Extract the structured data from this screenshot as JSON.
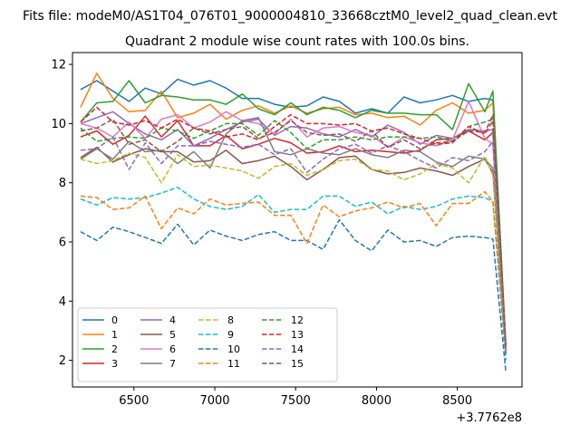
{
  "chart_data": {
    "type": "line",
    "suptitle": "Fits file: modeM0/AS1T04_076T01_9000004810_33668cztM0_level2_quad_clean.evt",
    "title": "Quadrant 2 module wise count rates with 100.0s bins.",
    "xlabel": "",
    "ylabel": "",
    "x_offset_label": "+3.7762e8",
    "xlim": [
      6120,
      8900
    ],
    "ylim": [
      1.1,
      12.4
    ],
    "x_ticks": [
      6500,
      7000,
      7500,
      8000,
      8500
    ],
    "y_ticks": [
      2,
      4,
      6,
      8,
      10,
      12
    ],
    "grid": false,
    "legend": {
      "position": "lower-left",
      "columns": 4
    },
    "x": [
      6170,
      6270,
      6370,
      6470,
      6570,
      6670,
      6770,
      6870,
      6970,
      7070,
      7170,
      7270,
      7370,
      7470,
      7570,
      7670,
      7770,
      7870,
      7970,
      8070,
      8170,
      8270,
      8370,
      8470,
      8570,
      8670,
      8720,
      8800
    ],
    "series": [
      {
        "name": "0",
        "color": "#1f77b4",
        "dash": "solid",
        "values": [
          11.15,
          11.45,
          11.1,
          10.75,
          11.2,
          11.0,
          11.5,
          11.3,
          11.45,
          11.2,
          10.85,
          10.85,
          10.65,
          10.55,
          10.6,
          10.9,
          10.75,
          10.35,
          10.5,
          10.35,
          10.9,
          10.7,
          10.8,
          10.95,
          10.75,
          10.85,
          10.8,
          2.3
        ]
      },
      {
        "name": "1",
        "color": "#ff7f0e",
        "dash": "solid",
        "values": [
          10.55,
          11.7,
          10.85,
          10.4,
          10.45,
          11.1,
          10.2,
          10.35,
          10.65,
          10.15,
          10.45,
          10.6,
          10.35,
          10.6,
          10.35,
          10.5,
          10.55,
          10.3,
          10.35,
          10.2,
          10.25,
          9.95,
          10.45,
          10.7,
          10.35,
          10.45,
          10.7,
          2.4
        ]
      },
      {
        "name": "2",
        "color": "#2ca02c",
        "dash": "solid",
        "values": [
          10.05,
          10.7,
          10.75,
          11.45,
          10.7,
          10.95,
          10.9,
          10.8,
          10.8,
          10.65,
          11.0,
          10.5,
          10.3,
          10.7,
          10.3,
          10.55,
          10.45,
          10.2,
          10.45,
          10.35,
          10.35,
          10.3,
          10.3,
          9.8,
          11.35,
          10.4,
          11.1,
          2.5
        ]
      },
      {
        "name": "3",
        "color": "#d62728",
        "dash": "solid",
        "values": [
          9.55,
          9.75,
          9.3,
          9.6,
          10.25,
          9.55,
          10.1,
          9.25,
          9.25,
          9.6,
          9.15,
          9.3,
          9.5,
          9.35,
          9.0,
          9.05,
          9.25,
          9.05,
          9.1,
          9.05,
          9.0,
          9.1,
          9.45,
          9.5,
          9.75,
          9.45,
          9.7,
          2.3
        ]
      },
      {
        "name": "4",
        "color": "#9467bd",
        "dash": "solid",
        "values": [
          10.0,
          10.2,
          10.4,
          10.0,
          9.65,
          9.45,
          9.8,
          9.25,
          9.5,
          9.8,
          10.05,
          10.15,
          9.6,
          9.9,
          9.85,
          9.65,
          9.55,
          9.8,
          9.55,
          9.95,
          9.7,
          9.3,
          9.6,
          9.5,
          9.8,
          9.75,
          9.8,
          2.4
        ]
      },
      {
        "name": "5",
        "color": "#8c564b",
        "dash": "solid",
        "values": [
          8.85,
          9.2,
          8.7,
          8.95,
          9.15,
          9.05,
          9.05,
          8.7,
          8.75,
          9.1,
          8.65,
          8.75,
          8.9,
          8.55,
          8.1,
          8.45,
          8.85,
          8.9,
          8.45,
          8.3,
          8.35,
          8.5,
          8.4,
          8.25,
          8.55,
          8.8,
          8.35,
          2.2
        ]
      },
      {
        "name": "6",
        "color": "#e377c2",
        "dash": "solid",
        "values": [
          10.0,
          9.85,
          9.55,
          10.05,
          9.5,
          10.15,
          10.3,
          9.85,
          10.05,
          10.4,
          10.1,
          10.0,
          9.65,
          10.15,
          9.55,
          9.85,
          9.9,
          9.7,
          9.6,
          9.2,
          9.55,
          9.35,
          9.25,
          9.45,
          10.75,
          9.5,
          9.3,
          2.3
        ]
      },
      {
        "name": "7",
        "color": "#7f7f7f",
        "dash": "solid",
        "values": [
          8.8,
          9.15,
          8.8,
          9.4,
          9.05,
          9.1,
          8.65,
          9.05,
          8.5,
          9.65,
          10.1,
          10.2,
          9.05,
          8.95,
          9.15,
          9.0,
          8.95,
          9.15,
          8.95,
          8.85,
          9.1,
          9.05,
          8.7,
          8.55,
          8.9,
          8.8,
          8.5,
          2.3
        ]
      },
      {
        "name": "8",
        "color": "#bcbd22",
        "dash": "dash",
        "values": [
          8.8,
          8.65,
          8.75,
          9.0,
          8.85,
          8.0,
          8.95,
          8.55,
          8.6,
          8.5,
          8.4,
          8.15,
          8.55,
          8.65,
          8.25,
          8.45,
          8.75,
          8.8,
          8.45,
          8.4,
          8.1,
          8.3,
          8.65,
          8.5,
          8.0,
          8.9,
          8.25,
          2.2
        ]
      },
      {
        "name": "9",
        "color": "#17becf",
        "dash": "dash",
        "values": [
          7.45,
          7.25,
          7.5,
          7.45,
          7.5,
          7.65,
          7.85,
          7.45,
          7.2,
          7.1,
          7.2,
          7.6,
          7.0,
          7.1,
          7.1,
          7.55,
          7.55,
          7.2,
          7.35,
          6.95,
          7.2,
          7.1,
          7.2,
          7.45,
          7.55,
          7.5,
          7.35,
          2.0
        ]
      },
      {
        "name": "10",
        "color": "#1f77b4",
        "dash": "dash",
        "values": [
          6.35,
          6.05,
          6.5,
          6.35,
          6.15,
          5.95,
          6.6,
          5.9,
          6.4,
          6.2,
          6.05,
          6.25,
          6.35,
          6.05,
          6.05,
          5.75,
          6.75,
          6.05,
          5.7,
          6.4,
          6.0,
          6.05,
          5.85,
          6.15,
          6.2,
          6.15,
          6.1,
          1.6
        ]
      },
      {
        "name": "11",
        "color": "#ff7f0e",
        "dash": "dash",
        "values": [
          7.55,
          7.5,
          7.1,
          7.15,
          7.55,
          6.45,
          7.15,
          6.95,
          7.45,
          7.25,
          7.3,
          7.35,
          6.9,
          6.9,
          5.95,
          7.25,
          6.85,
          7.05,
          7.15,
          7.35,
          7.15,
          7.3,
          6.55,
          7.3,
          7.3,
          7.7,
          7.35,
          2.3
        ]
      },
      {
        "name": "12",
        "color": "#2ca02c",
        "dash": "dash",
        "values": [
          9.85,
          9.4,
          9.5,
          9.55,
          9.5,
          9.85,
          9.75,
          9.5,
          9.75,
          10.0,
          10.0,
          9.6,
          10.1,
          9.7,
          9.15,
          9.45,
          9.45,
          9.55,
          9.45,
          9.55,
          9.55,
          9.5,
          9.55,
          9.4,
          9.9,
          10.05,
          10.15,
          2.4
        ]
      },
      {
        "name": "13",
        "color": "#d62728",
        "dash": "dash",
        "values": [
          10.05,
          10.55,
          10.05,
          9.95,
          10.1,
          9.85,
          10.15,
          9.85,
          9.75,
          9.55,
          9.65,
          9.45,
          9.9,
          10.3,
          10.0,
          10.0,
          9.95,
          10.0,
          9.75,
          9.85,
          9.65,
          9.5,
          9.3,
          9.35,
          9.9,
          9.65,
          10.1,
          2.5
        ]
      },
      {
        "name": "14",
        "color": "#9467bd",
        "dash": "dash",
        "values": [
          9.1,
          9.15,
          9.55,
          8.45,
          9.35,
          8.65,
          9.25,
          9.25,
          9.4,
          9.3,
          9.2,
          9.3,
          8.95,
          9.15,
          8.35,
          8.8,
          9.15,
          9.3,
          9.0,
          9.25,
          9.05,
          8.75,
          8.5,
          8.85,
          8.75,
          9.05,
          9.4,
          2.2
        ]
      },
      {
        "name": "15",
        "color": "#8c564b",
        "dash": "dash",
        "values": [
          9.75,
          9.85,
          10.15,
          9.3,
          9.45,
          9.05,
          9.4,
          9.85,
          9.65,
          9.8,
          9.9,
          9.5,
          9.7,
          10.1,
          9.7,
          9.6,
          9.65,
          9.4,
          9.75,
          9.2,
          9.45,
          9.15,
          9.35,
          9.4,
          9.75,
          9.7,
          10.3,
          2.5
        ]
      }
    ]
  }
}
